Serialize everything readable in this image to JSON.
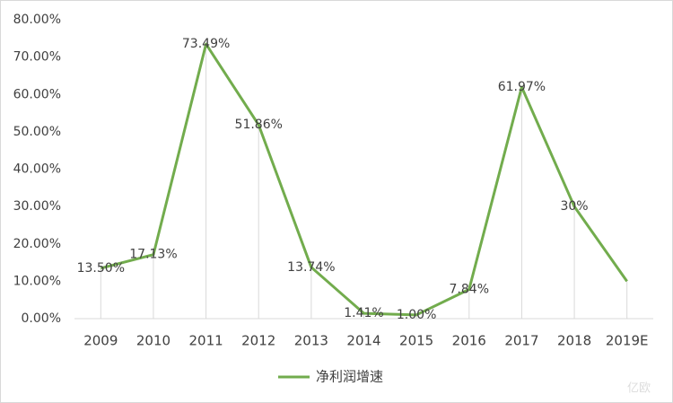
{
  "chart_data": {
    "type": "line",
    "categories": [
      "2009",
      "2010",
      "2011",
      "2012",
      "2013",
      "2014",
      "2015",
      "2016",
      "2017",
      "2018",
      "2019E"
    ],
    "series": [
      {
        "name": "净利润增速",
        "color": "#72ac4d",
        "values": [
          13.5,
          17.13,
          73.49,
          51.86,
          13.74,
          1.41,
          1.0,
          7.84,
          61.97,
          30,
          10
        ],
        "value_labels": [
          "13.50%",
          "17.13%",
          "73.49%",
          "51.86%",
          "13.74%",
          "1.41%",
          "1.00%",
          "7.84%",
          "61.97%",
          "30%",
          null
        ]
      }
    ],
    "ylim": [
      0,
      80
    ],
    "yticks": [
      {
        "value": 0,
        "label": "0.00%"
      },
      {
        "value": 10,
        "label": "10.00%"
      },
      {
        "value": 20,
        "label": "20.00%"
      },
      {
        "value": 30,
        "label": "30.00%"
      },
      {
        "value": 40,
        "label": "40.00%"
      },
      {
        "value": 50,
        "label": "50.00%"
      },
      {
        "value": 60,
        "label": "60.00%"
      },
      {
        "value": 70,
        "label": "70.00%"
      },
      {
        "value": 80,
        "label": "80.00%"
      }
    ],
    "drop_lines": true,
    "legend": "bottom",
    "watermark": "亿欧"
  }
}
